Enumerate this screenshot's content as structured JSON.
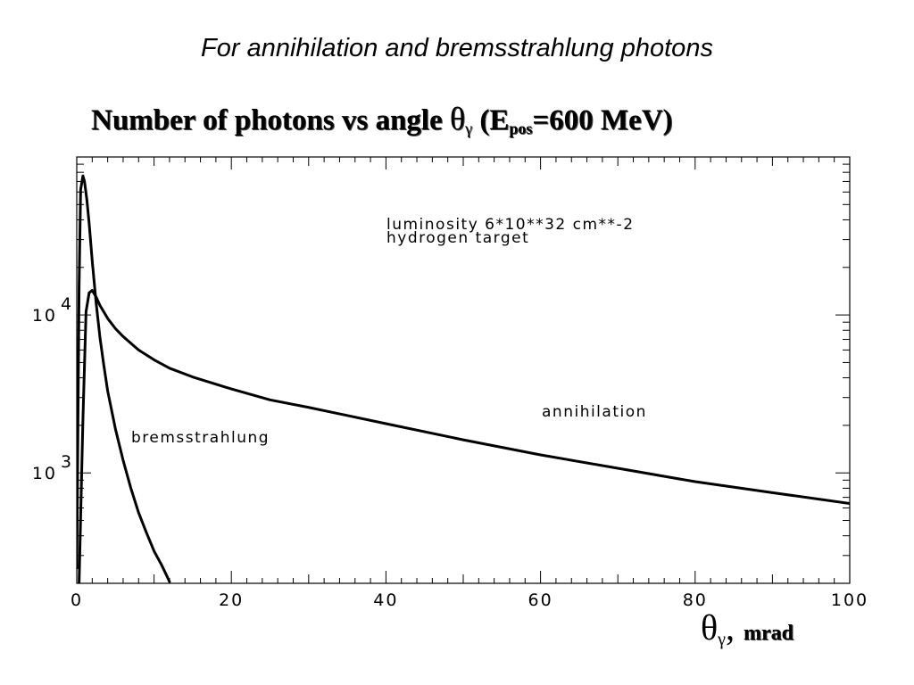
{
  "slide": {
    "heading": "For  annihilation and bremsstrahlung photons"
  },
  "chart_data": {
    "type": "line",
    "title": {
      "main": "Number of photons vs angle ",
      "theta": "θ",
      "gamma": "γ",
      "paren_open": " (E",
      "pos_sub": "pos",
      "energy": "=600 MeV",
      "paren_close": ")"
    },
    "x_axis_title": {
      "theta": "θ",
      "gamma": "γ",
      "sep": ", ",
      "unit": "mrad"
    },
    "xlim": [
      0,
      100
    ],
    "ylim": [
      200,
      100000
    ],
    "yscale": "log",
    "x_ticks": [
      "0",
      "20",
      "40",
      "60",
      "80",
      "100"
    ],
    "x_tick_values": [
      0,
      20,
      40,
      60,
      80,
      100
    ],
    "y_ticks": [
      {
        "value": 1000,
        "base": "10",
        "exp": "3"
      },
      {
        "value": 10000,
        "base": "10",
        "exp": "4"
      }
    ],
    "grid": false,
    "annotations": {
      "luminosity": "luminosity 6*10**32 cm**-2",
      "target": "hydrogen target",
      "annihilation": "annihilation",
      "bremsstrahlung": "bremsstrahlung"
    },
    "series": [
      {
        "name": "annihilation",
        "x": [
          0.3,
          0.8,
          1.2,
          1.6,
          2.0,
          2.5,
          3.0,
          4.0,
          5.0,
          6.0,
          8.0,
          10.0,
          12.0,
          15.0,
          20.0,
          25.0,
          30.0,
          40.0,
          50.0,
          60.0,
          70.0,
          80.0,
          90.0,
          100.0
        ],
        "y": [
          200,
          2200,
          10500,
          13800,
          14300,
          13000,
          11500,
          9500,
          8200,
          7300,
          6000,
          5200,
          4600,
          4050,
          3400,
          2900,
          2600,
          2050,
          1620,
          1300,
          1070,
          880,
          750,
          640
        ]
      },
      {
        "name": "bremsstrahlung",
        "x": [
          0.0,
          0.3,
          0.5,
          0.8,
          1.0,
          1.3,
          1.6,
          2.0,
          2.5,
          3.0,
          3.5,
          4.0,
          5.0,
          6.0,
          7.0,
          8.0,
          9.0,
          10.0,
          11.0,
          12.0
        ],
        "y": [
          250,
          15000,
          62000,
          76000,
          70000,
          54000,
          38000,
          22000,
          12000,
          7200,
          4800,
          3300,
          1900,
          1200,
          800,
          560,
          420,
          320,
          260,
          205
        ]
      }
    ]
  }
}
